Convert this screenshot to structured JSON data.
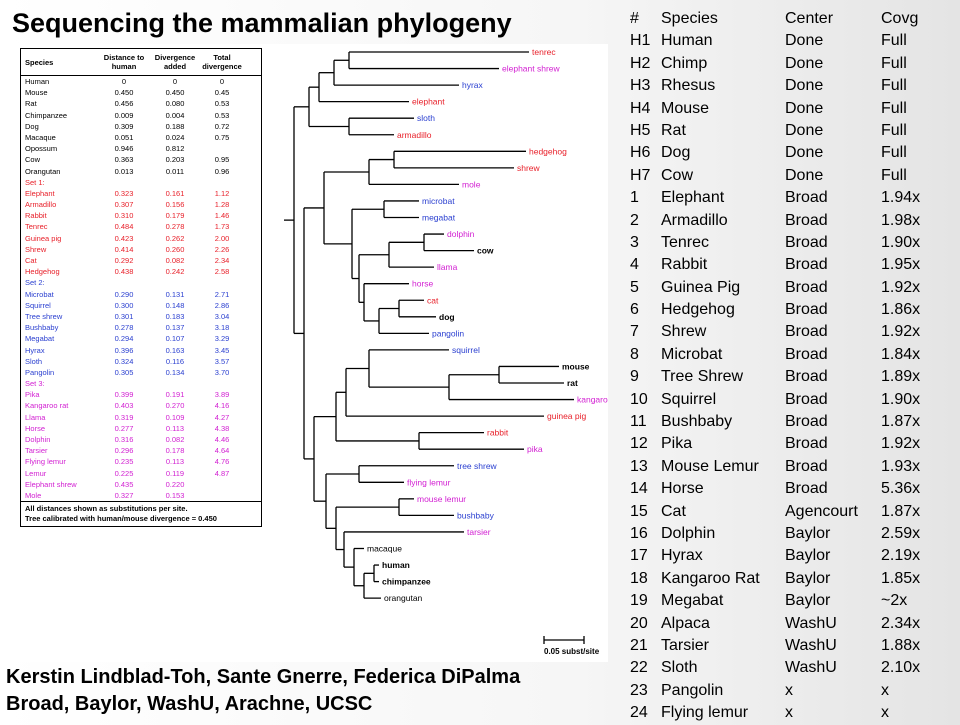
{
  "title": "Sequencing the mammalian phylogeny",
  "credits": {
    "line1": "Kerstin Lindblad-Toh, Sante Gnerre, Federica DiPalma",
    "line2": "Broad, Baylor, WashU, Arachne, UCSC"
  },
  "distance_table": {
    "headers": [
      "Species",
      "Distance to human",
      "Divergence added",
      "Total divergence"
    ],
    "rows": [
      {
        "species": "Human",
        "d": "0",
        "a": "0",
        "t": "0",
        "group": "base"
      },
      {
        "species": "Mouse",
        "d": "0.450",
        "a": "0.450",
        "t": "0.45",
        "group": "base"
      },
      {
        "species": "Rat",
        "d": "0.456",
        "a": "0.080",
        "t": "0.53",
        "group": "base"
      },
      {
        "species": "Chimpanzee",
        "d": "0.009",
        "a": "0.004",
        "t": "0.53",
        "group": "base"
      },
      {
        "species": "Dog",
        "d": "0.309",
        "a": "0.188",
        "t": "0.72",
        "group": "base"
      },
      {
        "species": "Macaque",
        "d": "0.051",
        "a": "0.024",
        "t": "0.75",
        "group": "base"
      },
      {
        "species": "Opossum",
        "d": "0.946",
        "a": "0.812",
        "t": "",
        "group": "base"
      },
      {
        "species": "Cow",
        "d": "0.363",
        "a": "0.203",
        "t": "0.95",
        "group": "base"
      },
      {
        "species": "Orangutan",
        "d": "0.013",
        "a": "0.011",
        "t": "0.96",
        "group": "base"
      },
      {
        "species": "Set 1:",
        "d": "",
        "a": "",
        "t": "",
        "group": "set1"
      },
      {
        "species": "Elephant",
        "d": "0.323",
        "a": "0.161",
        "t": "1.12",
        "group": "set1"
      },
      {
        "species": "Armadillo",
        "d": "0.307",
        "a": "0.156",
        "t": "1.28",
        "group": "set1"
      },
      {
        "species": "Rabbit",
        "d": "0.310",
        "a": "0.179",
        "t": "1.46",
        "group": "set1"
      },
      {
        "species": "Tenrec",
        "d": "0.484",
        "a": "0.278",
        "t": "1.73",
        "group": "set1"
      },
      {
        "species": "Guinea pig",
        "d": "0.423",
        "a": "0.262",
        "t": "2.00",
        "group": "set1"
      },
      {
        "species": "Shrew",
        "d": "0.414",
        "a": "0.260",
        "t": "2.26",
        "group": "set1"
      },
      {
        "species": "Cat",
        "d": "0.292",
        "a": "0.082",
        "t": "2.34",
        "group": "set1"
      },
      {
        "species": "Hedgehog",
        "d": "0.438",
        "a": "0.242",
        "t": "2.58",
        "group": "set1"
      },
      {
        "species": "Set 2:",
        "d": "",
        "a": "",
        "t": "",
        "group": "set2"
      },
      {
        "species": "Microbat",
        "d": "0.290",
        "a": "0.131",
        "t": "2.71",
        "group": "set2"
      },
      {
        "species": "Squirrel",
        "d": "0.300",
        "a": "0.148",
        "t": "2.86",
        "group": "set2"
      },
      {
        "species": "Tree shrew",
        "d": "0.301",
        "a": "0.183",
        "t": "3.04",
        "group": "set2"
      },
      {
        "species": "Bushbaby",
        "d": "0.278",
        "a": "0.137",
        "t": "3.18",
        "group": "set2"
      },
      {
        "species": "Megabat",
        "d": "0.294",
        "a": "0.107",
        "t": "3.29",
        "group": "set2"
      },
      {
        "species": "Hyrax",
        "d": "0.396",
        "a": "0.163",
        "t": "3.45",
        "group": "set2"
      },
      {
        "species": "Sloth",
        "d": "0.324",
        "a": "0.116",
        "t": "3.57",
        "group": "set2"
      },
      {
        "species": "Pangolin",
        "d": "0.305",
        "a": "0.134",
        "t": "3.70",
        "group": "set2"
      },
      {
        "species": "Set 3:",
        "d": "",
        "a": "",
        "t": "",
        "group": "set3"
      },
      {
        "species": "Pika",
        "d": "0.399",
        "a": "0.191",
        "t": "3.89",
        "group": "set3"
      },
      {
        "species": "Kangaroo rat",
        "d": "0.403",
        "a": "0.270",
        "t": "4.16",
        "group": "set3"
      },
      {
        "species": "Llama",
        "d": "0.319",
        "a": "0.109",
        "t": "4.27",
        "group": "set3"
      },
      {
        "species": "Horse",
        "d": "0.277",
        "a": "0.113",
        "t": "4.38",
        "group": "set3"
      },
      {
        "species": "Dolphin",
        "d": "0.316",
        "a": "0.082",
        "t": "4.46",
        "group": "set3"
      },
      {
        "species": "Tarsier",
        "d": "0.296",
        "a": "0.178",
        "t": "4.64",
        "group": "set3"
      },
      {
        "species": "Flying lemur",
        "d": "0.235",
        "a": "0.113",
        "t": "4.76",
        "group": "set3"
      },
      {
        "species": "Lemur",
        "d": "0.225",
        "a": "0.119",
        "t": "4.87",
        "group": "set3"
      },
      {
        "species": "Elephant shrew",
        "d": "0.435",
        "a": "0.220",
        "t": "",
        "group": "set3"
      },
      {
        "species": "Mole",
        "d": "0.327",
        "a": "0.153",
        "t": "",
        "group": "set3"
      }
    ],
    "note1": "All distances shown as substitutions per site.",
    "note2": "Tree calibrated with human/mouse divergence = 0.450",
    "colors": {
      "base": "#000000",
      "set1": "#e8202a",
      "set2": "#2a3fd0",
      "set3": "#d21fd2"
    }
  },
  "tree": {
    "leaves": [
      {
        "label": "tenrec",
        "color": "#e8202a",
        "bold": false
      },
      {
        "label": "elephant shrew",
        "color": "#d21fd2",
        "bold": false
      },
      {
        "label": "hyrax",
        "color": "#2a3fd0",
        "bold": false
      },
      {
        "label": "elephant",
        "color": "#e8202a",
        "bold": false
      },
      {
        "label": "sloth",
        "color": "#2a3fd0",
        "bold": false
      },
      {
        "label": "armadillo",
        "color": "#e8202a",
        "bold": false
      },
      {
        "label": "hedgehog",
        "color": "#e8202a",
        "bold": false
      },
      {
        "label": "shrew",
        "color": "#e8202a",
        "bold": false
      },
      {
        "label": "mole",
        "color": "#d21fd2",
        "bold": false
      },
      {
        "label": "microbat",
        "color": "#2a3fd0",
        "bold": false
      },
      {
        "label": "megabat",
        "color": "#2a3fd0",
        "bold": false
      },
      {
        "label": "dolphin",
        "color": "#d21fd2",
        "bold": false
      },
      {
        "label": "cow",
        "color": "#000000",
        "bold": true
      },
      {
        "label": "llama",
        "color": "#d21fd2",
        "bold": false
      },
      {
        "label": "horse",
        "color": "#d21fd2",
        "bold": false
      },
      {
        "label": "cat",
        "color": "#e8202a",
        "bold": false
      },
      {
        "label": "dog",
        "color": "#000000",
        "bold": true
      },
      {
        "label": "pangolin",
        "color": "#2a3fd0",
        "bold": false
      },
      {
        "label": "squirrel",
        "color": "#2a3fd0",
        "bold": false
      },
      {
        "label": "mouse",
        "color": "#000000",
        "bold": true
      },
      {
        "label": "rat",
        "color": "#000000",
        "bold": true
      },
      {
        "label": "kangaroo rat",
        "color": "#d21fd2",
        "bold": false
      },
      {
        "label": "guinea pig",
        "color": "#e8202a",
        "bold": false
      },
      {
        "label": "rabbit",
        "color": "#e8202a",
        "bold": false
      },
      {
        "label": "pika",
        "color": "#d21fd2",
        "bold": false
      },
      {
        "label": "tree shrew",
        "color": "#2a3fd0",
        "bold": false
      },
      {
        "label": "flying lemur",
        "color": "#d21fd2",
        "bold": false
      },
      {
        "label": "mouse lemur",
        "color": "#d21fd2",
        "bold": false
      },
      {
        "label": "bushbaby",
        "color": "#2a3fd0",
        "bold": false
      },
      {
        "label": "tarsier",
        "color": "#d21fd2",
        "bold": false
      },
      {
        "label": "macaque",
        "color": "#000000",
        "bold": false
      },
      {
        "label": "human",
        "color": "#000000",
        "bold": true
      },
      {
        "label": "chimpanzee",
        "color": "#000000",
        "bold": true
      },
      {
        "label": "orangutan",
        "color": "#000000",
        "bold": false
      }
    ],
    "scale_label": "0.05 subst/site"
  },
  "species_table": {
    "headers": [
      "#",
      "Species",
      "Center",
      "Covg"
    ],
    "rows": [
      [
        "H1",
        "Human",
        "Done",
        "Full"
      ],
      [
        "H2",
        "Chimp",
        "Done",
        "Full"
      ],
      [
        "H3",
        "Rhesus",
        "Done",
        "Full"
      ],
      [
        "H4",
        "Mouse",
        "Done",
        "Full"
      ],
      [
        "H5",
        "Rat",
        "Done",
        "Full"
      ],
      [
        "H6",
        "Dog",
        "Done",
        "Full"
      ],
      [
        "H7",
        "Cow",
        "Done",
        "Full"
      ],
      [
        "1",
        "Elephant",
        "Broad",
        "1.94x"
      ],
      [
        "2",
        "Armadillo",
        "Broad",
        "1.98x"
      ],
      [
        "3",
        "Tenrec",
        "Broad",
        "1.90x"
      ],
      [
        "4",
        "Rabbit",
        "Broad",
        "1.95x"
      ],
      [
        "5",
        "Guinea Pig",
        "Broad",
        "1.92x"
      ],
      [
        "6",
        "Hedgehog",
        "Broad",
        "1.86x"
      ],
      [
        "7",
        "Shrew",
        "Broad",
        "1.92x"
      ],
      [
        "8",
        "Microbat",
        "Broad",
        "1.84x"
      ],
      [
        "9",
        "Tree Shrew",
        "Broad",
        "1.89x"
      ],
      [
        "10",
        "Squirrel",
        "Broad",
        "1.90x"
      ],
      [
        "11",
        "Bushbaby",
        "Broad",
        "1.87x"
      ],
      [
        "12",
        "Pika",
        "Broad",
        "1.92x"
      ],
      [
        "13",
        "Mouse Lemur",
        "Broad",
        "1.93x"
      ],
      [
        "14",
        "Horse",
        "Broad",
        "5.36x"
      ],
      [
        "15",
        "Cat",
        "Agencourt",
        "1.87x"
      ],
      [
        "16",
        "Dolphin",
        "Baylor",
        "2.59x"
      ],
      [
        "17",
        "Hyrax",
        "Baylor",
        "2.19x"
      ],
      [
        "18",
        "Kangaroo Rat",
        "Baylor",
        "1.85x"
      ],
      [
        "19",
        "Megabat",
        "Baylor",
        "~2x"
      ],
      [
        "20",
        "Alpaca",
        "WashU",
        "2.34x"
      ],
      [
        "21",
        "Tarsier",
        "WashU",
        "1.88x"
      ],
      [
        "22",
        "Sloth",
        "WashU",
        "2.10x"
      ],
      [
        "23",
        "Pangolin",
        "x",
        "x"
      ],
      [
        "24",
        "Flying lemur",
        "x",
        "x"
      ]
    ]
  }
}
